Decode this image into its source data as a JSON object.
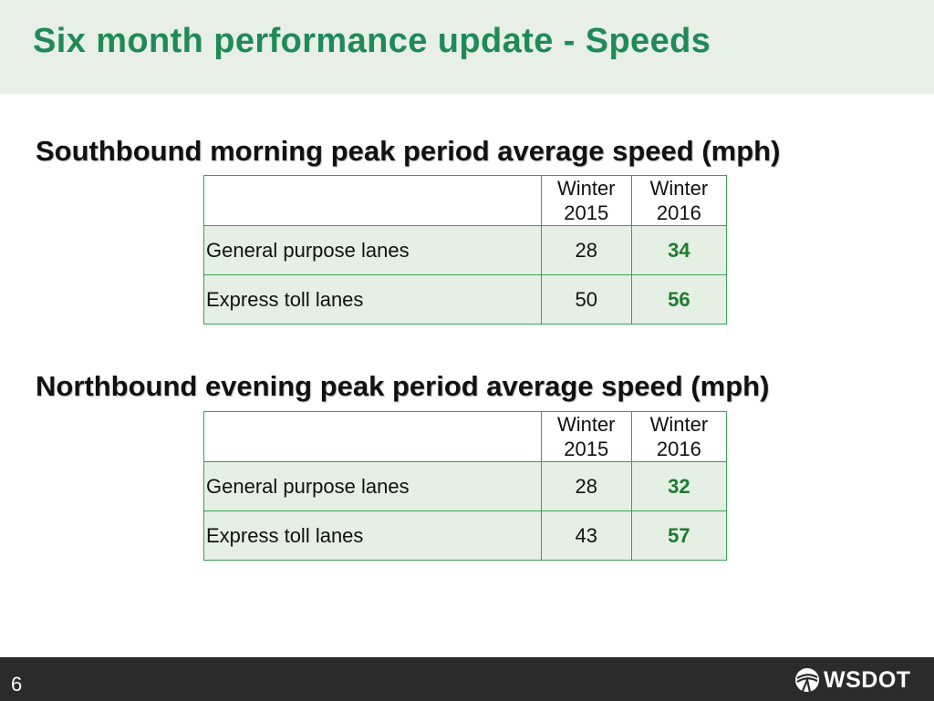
{
  "header": {
    "title": "Six month performance update - Speeds"
  },
  "tables": [
    {
      "heading": "Southbound morning peak period average speed (mph)",
      "columns": [
        "",
        "Winter 2015",
        "Winter 2016"
      ],
      "column_lines": [
        [
          "Winter",
          "2015"
        ],
        [
          "Winter",
          "2016"
        ]
      ],
      "rows": [
        {
          "label": "General purpose lanes",
          "winter_2015": "28",
          "winter_2016": "34"
        },
        {
          "label": "Express toll lanes",
          "winter_2015": "50",
          "winter_2016": "56"
        }
      ]
    },
    {
      "heading": "Northbound evening peak period average speed (mph)",
      "columns": [
        "",
        "Winter 2015",
        "Winter 2016"
      ],
      "column_lines": [
        [
          "Winter",
          "2015"
        ],
        [
          "Winter",
          "2016"
        ]
      ],
      "rows": [
        {
          "label": "General purpose lanes",
          "winter_2015": "28",
          "winter_2016": "32"
        },
        {
          "label": "Express toll lanes",
          "winter_2015": "43",
          "winter_2016": "57"
        }
      ]
    }
  ],
  "footer": {
    "page_number": "6",
    "logo_text": "WSDOT",
    "logo_icon": "wsdot-swoosh-icon"
  },
  "colors": {
    "title": "#1f8a57",
    "highlight": "#1e7a2e",
    "header_band": "#e7efe6",
    "table_fill": "#e5efe4",
    "table_border": "#3aa153",
    "footer": "#2b2b2b"
  }
}
